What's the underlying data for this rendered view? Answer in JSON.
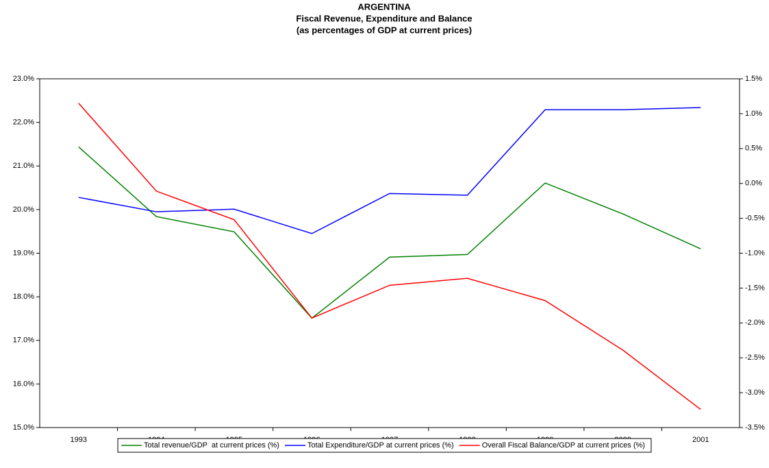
{
  "chart_data": {
    "type": "line",
    "title": "ARGENTINA",
    "subtitle": [
      "Fiscal Revenue, Expenditure and Balance",
      "(as percentages of GDP at current prices)"
    ],
    "categories": [
      "1993",
      "1994",
      "1995",
      "1996",
      "1997",
      "1998",
      "1999",
      "2000",
      "2001"
    ],
    "series": [
      {
        "name": "Total revenue/GDP  at current prices (%)",
        "color": "#008000",
        "values": [
          21.44,
          19.84,
          19.49,
          17.51,
          18.91,
          18.97,
          20.61,
          19.9,
          19.1
        ]
      },
      {
        "name": "Total Expenditure/GDP at current prices (%)",
        "color": "#0000ff",
        "values": [
          20.28,
          19.95,
          20.01,
          19.45,
          20.37,
          20.33,
          22.29,
          22.29,
          22.34
        ]
      },
      {
        "name": "Overall Fiscal Balance/GDP at current prices (%)",
        "color": "#ff0000",
        "axis": "y2",
        "values": [
          1.15,
          -0.11,
          -0.52,
          -1.93,
          -1.46,
          -1.36,
          -1.68,
          -2.39,
          -3.24
        ]
      }
    ],
    "ylim": [
      15,
      23
    ],
    "yticks": [
      {
        "value": 15,
        "label": "15.0%"
      },
      {
        "value": 16,
        "label": "16.0%"
      },
      {
        "value": 17,
        "label": "17.0%"
      },
      {
        "value": 18,
        "label": "18.0%"
      },
      {
        "value": 19,
        "label": "19.0%"
      },
      {
        "value": 20,
        "label": "20.0%"
      },
      {
        "value": 21,
        "label": "21.0%"
      },
      {
        "value": 22,
        "label": "22.0%"
      },
      {
        "value": 23,
        "label": "23.0%"
      }
    ],
    "y2lim": [
      -3.5,
      1.5
    ],
    "y2ticks": [
      {
        "value": -3.5,
        "label": "-3.5%"
      },
      {
        "value": -3,
        "label": "-3.0%"
      },
      {
        "value": -2.5,
        "label": "-2.5%"
      },
      {
        "value": -2,
        "label": "-2.0%"
      },
      {
        "value": -1.5,
        "label": "-1.5%"
      },
      {
        "value": -1,
        "label": "-1.0%"
      },
      {
        "value": -0.5,
        "label": "-0.5%"
      },
      {
        "value": 0,
        "label": "0.0%"
      },
      {
        "value": 0.5,
        "label": "0.5%"
      },
      {
        "value": 1,
        "label": "1.0%"
      },
      {
        "value": 1.5,
        "label": "1.5%"
      }
    ],
    "grid": false,
    "legend": "bottom"
  }
}
